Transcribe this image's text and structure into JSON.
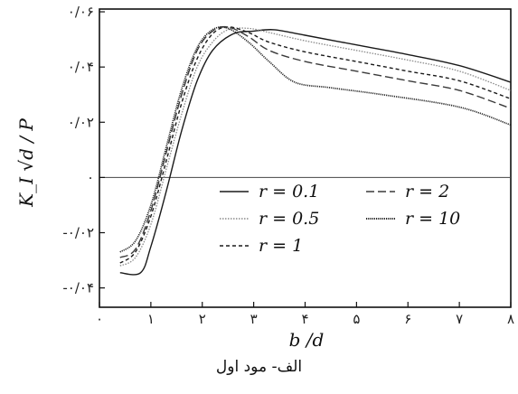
{
  "caption": "الف- مود اول",
  "chart_data": {
    "type": "line",
    "xlabel": "b /d",
    "ylabel": "K_I √d / P",
    "xlim": [
      0,
      8
    ],
    "ylim": [
      -0.047,
      0.061
    ],
    "x_ticks": [
      {
        "value": 0,
        "label": "۰"
      },
      {
        "value": 1,
        "label": "۱"
      },
      {
        "value": 2,
        "label": "۲"
      },
      {
        "value": 3,
        "label": "۳"
      },
      {
        "value": 4,
        "label": "۴"
      },
      {
        "value": 5,
        "label": "۵"
      },
      {
        "value": 6,
        "label": "۶"
      },
      {
        "value": 7,
        "label": "۷"
      },
      {
        "value": 8,
        "label": "۸"
      }
    ],
    "y_ticks": [
      {
        "value": 0.06,
        "label": "۰/۰۶"
      },
      {
        "value": 0.04,
        "label": "۰/۰۴"
      },
      {
        "value": 0.02,
        "label": "۰/۰۲"
      },
      {
        "value": 0,
        "label": "۰"
      },
      {
        "value": -0.02,
        "label": "-۰/۰۲"
      },
      {
        "value": -0.04,
        "label": "-۰/۰۴"
      }
    ],
    "zero_line": true,
    "legend_position": "center-right",
    "series": [
      {
        "name": "r = 0.1",
        "style": "solid",
        "color": "#1a1a1a",
        "points": [
          [
            0.4,
            -0.0345
          ],
          [
            0.8,
            -0.0345
          ],
          [
            1.0,
            -0.025
          ],
          [
            1.3,
            -0.005
          ],
          [
            1.6,
            0.017
          ],
          [
            1.9,
            0.035
          ],
          [
            2.2,
            0.046
          ],
          [
            2.6,
            0.052
          ],
          [
            3.0,
            0.053
          ],
          [
            3.4,
            0.0535
          ],
          [
            4.0,
            0.0515
          ],
          [
            5.0,
            0.048
          ],
          [
            6.0,
            0.0445
          ],
          [
            7.0,
            0.0405
          ],
          [
            8.0,
            0.0345
          ]
        ]
      },
      {
        "name": "r = 0.5",
        "style": "dotted",
        "color": "#8a8a8a",
        "points": [
          [
            0.4,
            -0.032
          ],
          [
            0.7,
            -0.029
          ],
          [
            1.0,
            -0.017
          ],
          [
            1.3,
            0.003
          ],
          [
            1.6,
            0.023
          ],
          [
            1.9,
            0.04
          ],
          [
            2.2,
            0.049
          ],
          [
            2.5,
            0.0535
          ],
          [
            2.9,
            0.054
          ],
          [
            3.3,
            0.0525
          ],
          [
            4.0,
            0.0495
          ],
          [
            5.0,
            0.046
          ],
          [
            6.0,
            0.0425
          ],
          [
            7.0,
            0.0385
          ],
          [
            8.0,
            0.0315
          ]
        ]
      },
      {
        "name": "r = 1",
        "style": "short-dash",
        "color": "#1a1a1a",
        "points": [
          [
            0.4,
            -0.031
          ],
          [
            0.7,
            -0.027
          ],
          [
            1.0,
            -0.014
          ],
          [
            1.3,
            0.006
          ],
          [
            1.6,
            0.027
          ],
          [
            1.9,
            0.043
          ],
          [
            2.2,
            0.052
          ],
          [
            2.5,
            0.0545
          ],
          [
            2.9,
            0.0525
          ],
          [
            3.3,
            0.049
          ],
          [
            4.0,
            0.0455
          ],
          [
            5.0,
            0.042
          ],
          [
            6.0,
            0.0385
          ],
          [
            7.0,
            0.035
          ],
          [
            8.0,
            0.0285
          ]
        ]
      },
      {
        "name": "r = 2",
        "style": "long-dash",
        "color": "#3a3a3a",
        "points": [
          [
            0.4,
            -0.029
          ],
          [
            0.7,
            -0.026
          ],
          [
            1.0,
            -0.012
          ],
          [
            1.3,
            0.009
          ],
          [
            1.6,
            0.03
          ],
          [
            1.9,
            0.046
          ],
          [
            2.2,
            0.053
          ],
          [
            2.5,
            0.0545
          ],
          [
            2.9,
            0.051
          ],
          [
            3.3,
            0.046
          ],
          [
            4.0,
            0.042
          ],
          [
            5.0,
            0.0385
          ],
          [
            6.0,
            0.035
          ],
          [
            7.0,
            0.0315
          ],
          [
            8.0,
            0.025
          ]
        ]
      },
      {
        "name": "r = 10",
        "style": "fine-dot",
        "color": "#2a2a2a",
        "points": [
          [
            0.4,
            -0.027
          ],
          [
            0.7,
            -0.023
          ],
          [
            1.0,
            -0.01
          ],
          [
            1.3,
            0.011
          ],
          [
            1.6,
            0.032
          ],
          [
            1.9,
            0.047
          ],
          [
            2.2,
            0.0535
          ],
          [
            2.5,
            0.054
          ],
          [
            2.9,
            0.049
          ],
          [
            3.3,
            0.042
          ],
          [
            3.8,
            0.0345
          ],
          [
            4.5,
            0.0325
          ],
          [
            5.5,
            0.03
          ],
          [
            7.0,
            0.0255
          ],
          [
            8.0,
            0.019
          ]
        ]
      }
    ]
  }
}
